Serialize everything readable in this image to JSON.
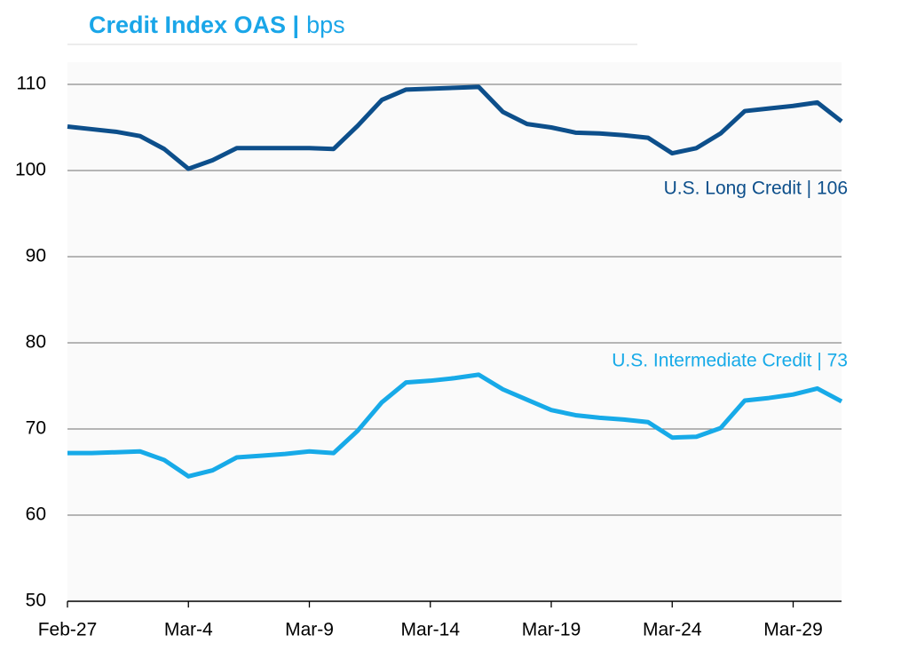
{
  "chart_data": {
    "type": "line",
    "title": "Credit Index OAS |",
    "subtitle": "bps",
    "categories": [
      "Feb-27",
      null,
      null,
      null,
      null,
      "Mar-4",
      null,
      null,
      null,
      null,
      "Mar-9",
      null,
      null,
      null,
      null,
      "Mar-14",
      null,
      null,
      null,
      null,
      "Mar-19",
      null,
      null,
      null,
      null,
      "Mar-24",
      null,
      null,
      null,
      null,
      "Mar-29",
      null,
      null
    ],
    "series": [
      {
        "name": "U.S. Long Credit | 106",
        "color": "#0d4f8b",
        "values": [
          105.1,
          104.8,
          104.5,
          104.0,
          102.5,
          100.2,
          101.2,
          102.6,
          102.6,
          102.6,
          102.6,
          102.5,
          105.2,
          108.2,
          109.4,
          109.5,
          109.6,
          109.7,
          106.8,
          105.4,
          105.0,
          104.4,
          104.3,
          104.1,
          103.8,
          102.0,
          102.6,
          104.3,
          106.9,
          107.2,
          107.5,
          107.9,
          105.7
        ]
      },
      {
        "name": "U.S. Intermediate Credit | 73",
        "color": "#17aae8",
        "values": [
          67.2,
          67.2,
          67.3,
          67.4,
          66.4,
          64.5,
          65.2,
          66.7,
          66.9,
          67.1,
          67.4,
          67.2,
          69.8,
          73.1,
          75.4,
          75.6,
          75.9,
          76.3,
          74.6,
          73.4,
          72.2,
          71.6,
          71.3,
          71.1,
          70.8,
          69.0,
          69.1,
          70.1,
          73.3,
          73.6,
          74.0,
          74.7,
          73.2
        ]
      }
    ],
    "ylim": [
      50,
      110
    ],
    "yticks": [
      50,
      60,
      70,
      80,
      90,
      100,
      110
    ],
    "grid": true
  }
}
